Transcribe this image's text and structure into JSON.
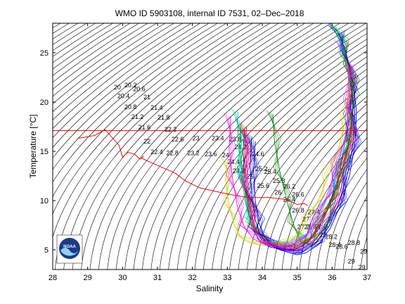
{
  "chart_data": {
    "type": "scatter",
    "title": "WMO ID 5903108, internal ID 7531, 02–Dec–2018",
    "xlabel": "Salinity",
    "ylabel": "Temperature [°C]",
    "xlim": [
      28,
      37
    ],
    "ylim": [
      3,
      28
    ],
    "xticks": [
      "28",
      "29",
      "30",
      "31",
      "32",
      "33",
      "34",
      "35",
      "36",
      "37"
    ],
    "yticks": [
      "5",
      "10",
      "15",
      "20",
      "25"
    ],
    "grid": false,
    "legend": "none",
    "density_contour_labels": [
      {
        "label": "20",
        "s": 29.75,
        "t": 21.3
      },
      {
        "label": "20.2",
        "s": 30.05,
        "t": 21.5
      },
      {
        "label": "20.4",
        "s": 29.85,
        "t": 20.4
      },
      {
        "label": "20.6",
        "s": 30.3,
        "t": 21.1
      },
      {
        "label": "20.8",
        "s": 30.05,
        "t": 19.3
      },
      {
        "label": "21",
        "s": 30.6,
        "t": 20.3
      },
      {
        "label": "21.2",
        "s": 30.25,
        "t": 18.3
      },
      {
        "label": "21.4",
        "s": 30.8,
        "t": 19.2
      },
      {
        "label": "21.6",
        "s": 30.45,
        "t": 17.2
      },
      {
        "label": "21.8",
        "s": 31.0,
        "t": 18.2
      },
      {
        "label": "22",
        "s": 30.6,
        "t": 15.8
      },
      {
        "label": "22.2",
        "s": 31.2,
        "t": 17.0
      },
      {
        "label": "22.4",
        "s": 30.8,
        "t": 14.7
      },
      {
        "label": "22.6",
        "s": 31.4,
        "t": 16.0
      },
      {
        "label": "22.8",
        "s": 31.25,
        "t": 14.6
      },
      {
        "label": "23",
        "s": 32.0,
        "t": 16.1
      },
      {
        "label": "23.2",
        "s": 31.85,
        "t": 14.6
      },
      {
        "label": "23.4",
        "s": 32.55,
        "t": 16.1
      },
      {
        "label": "23.6",
        "s": 32.35,
        "t": 14.5
      },
      {
        "label": "23.8",
        "s": 33.05,
        "t": 16.0
      },
      {
        "label": "24",
        "s": 32.85,
        "t": 14.4
      },
      {
        "label": "24.2",
        "s": 33.2,
        "t": 15.2
      },
      {
        "label": "24.4",
        "s": 33.0,
        "t": 13.7
      },
      {
        "label": "24.6",
        "s": 33.7,
        "t": 14.5
      },
      {
        "label": "24.8",
        "s": 33.15,
        "t": 12.8
      },
      {
        "label": "25",
        "s": 33.55,
        "t": 12.2
      },
      {
        "label": "25.2",
        "s": 33.8,
        "t": 13.0
      },
      {
        "label": "25.4",
        "s": 34.05,
        "t": 12.7
      },
      {
        "label": "25.6",
        "s": 33.85,
        "t": 11.3
      },
      {
        "label": "25.8",
        "s": 34.3,
        "t": 11.8
      },
      {
        "label": "26",
        "s": 34.35,
        "t": 10.6
      },
      {
        "label": "26.2",
        "s": 34.6,
        "t": 11.2
      },
      {
        "label": "26.4",
        "s": 34.6,
        "t": 9.9
      },
      {
        "label": "26.6",
        "s": 34.85,
        "t": 10.4
      },
      {
        "label": "26.8",
        "s": 34.85,
        "t": 8.8
      },
      {
        "label": "27",
        "s": 35.15,
        "t": 7.9
      },
      {
        "label": "27.2",
        "s": 35.0,
        "t": 7.1
      },
      {
        "label": "27.4",
        "s": 35.3,
        "t": 8.6
      },
      {
        "label": "27.6",
        "s": 35.2,
        "t": 7.1
      },
      {
        "label": "27.8",
        "s": 35.5,
        "t": 7.1
      },
      {
        "label": "28",
        "s": 35.65,
        "t": 6.3
      },
      {
        "label": "28.2",
        "s": 35.8,
        "t": 6.1
      },
      {
        "label": "28.4",
        "s": 35.9,
        "t": 5.3
      },
      {
        "label": "28.6",
        "s": 36.1,
        "t": 5.1
      },
      {
        "label": "28.8",
        "s": 36.45,
        "t": 5.5
      },
      {
        "label": "29",
        "s": 36.8,
        "t": 4.6
      },
      {
        "label": "29",
        "s": 36.45,
        "t": 3.6
      },
      {
        "label": "29",
        "s": 36.75,
        "t": 3.0
      }
    ],
    "reference_line": {
      "color": "#ff0000",
      "t": 17.1,
      "s_range": [
        28,
        37
      ]
    },
    "red_profile": {
      "color": "#ff0000",
      "s": [
        28.7,
        29.2,
        29.5,
        29.9,
        30.0,
        30.15,
        30.35,
        30.5,
        30.6,
        30.55,
        30.85,
        31.5,
        31.8,
        32.2,
        32.7,
        33.1,
        33.6,
        34.2,
        34.7,
        35.0,
        35.2,
        35.3
      ],
      "t": [
        16.3,
        16.6,
        17.2,
        15.6,
        14.4,
        14.9,
        14.7,
        14.2,
        14.5,
        14.3,
        13.8,
        12.8,
        12.0,
        11.3,
        10.9,
        10.6,
        10.3,
        10.3,
        10.1,
        9.6,
        9.7,
        9.5
      ]
    },
    "profiles": [
      {
        "color": "#0000ff",
        "s": [
          33.5,
          33.45,
          33.5,
          33.6,
          33.75,
          33.9,
          34.2,
          34.6,
          34.9,
          35.2,
          35.6,
          35.9,
          36.2,
          36.35,
          36.5,
          36.55,
          36.5,
          36.3,
          36.05
        ],
        "t": [
          17.2,
          15.0,
          12.0,
          9.0,
          7.0,
          6.0,
          5.3,
          5.0,
          5.0,
          5.5,
          7.0,
          9.5,
          12.5,
          15.5,
          18.5,
          21.0,
          23.5,
          25.5,
          27.5
        ]
      },
      {
        "color": "#00aa00",
        "s": [
          33.4,
          33.35,
          33.45,
          33.55,
          33.7,
          33.95,
          34.3,
          34.7,
          35.0,
          35.4,
          35.75,
          36.05,
          36.3,
          36.5,
          36.6,
          36.55,
          36.4,
          36.2
        ],
        "t": [
          18.0,
          15.5,
          12.5,
          9.5,
          7.5,
          6.3,
          5.6,
          5.3,
          5.4,
          6.2,
          8.0,
          10.5,
          13.5,
          16.5,
          19.5,
          22.0,
          24.5,
          26.5
        ]
      },
      {
        "color": "#ff00ff",
        "s": [
          33.6,
          33.55,
          33.6,
          33.7,
          33.85,
          34.05,
          34.4,
          34.8,
          35.1,
          35.45,
          35.85,
          36.15,
          36.4,
          36.55,
          36.6,
          36.45,
          36.25
        ],
        "t": [
          16.8,
          14.0,
          11.0,
          8.5,
          6.8,
          5.8,
          5.2,
          4.9,
          5.0,
          5.8,
          7.5,
          10.0,
          13.0,
          16.0,
          19.5,
          23.0,
          26.0
        ]
      },
      {
        "color": "#00bfbf",
        "s": [
          33.3,
          33.3,
          33.4,
          33.5,
          33.65,
          33.85,
          34.15,
          34.55,
          34.85,
          35.25,
          35.65,
          35.95,
          36.25,
          36.45,
          36.55,
          36.5,
          36.35,
          36.15,
          36.0
        ],
        "t": [
          19.0,
          16.0,
          13.0,
          10.0,
          8.0,
          6.6,
          5.8,
          5.4,
          5.5,
          6.5,
          8.5,
          11.0,
          14.0,
          17.0,
          20.0,
          22.5,
          24.8,
          26.8,
          27.8
        ]
      },
      {
        "color": "#000088",
        "s": [
          33.7,
          33.65,
          33.7,
          33.8,
          33.95,
          34.15,
          34.5,
          34.9,
          35.15,
          35.5,
          35.9,
          36.2,
          36.45,
          36.6,
          36.65,
          36.5
        ],
        "t": [
          16.5,
          13.5,
          10.5,
          8.0,
          6.5,
          5.6,
          5.0,
          4.6,
          4.8,
          5.6,
          7.3,
          9.8,
          12.8,
          15.8,
          19.0,
          22.5
        ]
      },
      {
        "color": "#cccc00",
        "s": [
          33.0,
          32.95,
          33.05,
          33.2,
          33.4,
          33.6,
          33.9,
          34.3,
          34.7,
          35.0,
          35.3,
          35.6,
          35.9,
          36.2,
          36.4,
          36.5,
          36.45,
          36.3
        ],
        "t": [
          14.0,
          12.0,
          9.5,
          7.5,
          6.2,
          5.8,
          5.5,
          5.4,
          5.6,
          6.4,
          8.0,
          10.0,
          12.5,
          15.5,
          18.5,
          21.5,
          24.0,
          26.0
        ]
      },
      {
        "color": "#ff0000",
        "s": [
          33.55,
          33.5,
          33.55,
          33.65,
          33.8,
          34.0,
          34.35,
          34.75,
          35.05,
          35.35,
          35.7,
          36.0,
          36.3,
          36.5,
          36.6,
          36.55,
          36.4
        ],
        "t": [
          17.5,
          14.5,
          11.5,
          8.8,
          7.0,
          6.0,
          5.4,
          5.1,
          5.2,
          6.0,
          7.8,
          10.2,
          13.2,
          16.2,
          19.2,
          22.2,
          25.0
        ]
      },
      {
        "color": "#008000",
        "s": [
          34.3,
          34.35,
          34.5,
          34.7,
          34.9,
          35.1,
          35.4,
          35.8,
          36.1,
          36.35,
          36.55,
          36.6,
          36.5,
          36.3,
          36.1
        ],
        "t": [
          18.8,
          16.0,
          13.0,
          10.0,
          7.5,
          5.8,
          5.5,
          7.2,
          10.0,
          13.5,
          17.0,
          20.5,
          23.5,
          26.0,
          27.5
        ]
      },
      {
        "color": "#0000ff",
        "s": [
          33.8,
          33.75,
          33.8,
          33.9,
          34.05,
          34.25,
          34.6,
          35.0,
          35.25,
          35.6,
          35.95,
          36.25,
          36.5,
          36.65,
          36.7,
          36.6,
          36.4,
          36.2
        ],
        "t": [
          16.0,
          13.0,
          10.0,
          7.8,
          6.4,
          5.5,
          4.9,
          4.5,
          4.7,
          5.5,
          7.2,
          9.6,
          12.6,
          15.6,
          19.0,
          22.0,
          25.0,
          27.0
        ]
      },
      {
        "color": "#ff00ff",
        "s": [
          33.1,
          33.05,
          33.15,
          33.3,
          33.5,
          33.75,
          34.1,
          34.5,
          34.8,
          35.2,
          35.55,
          35.85,
          36.15,
          36.4,
          36.5,
          36.45
        ],
        "t": [
          18.5,
          15.2,
          12.2,
          9.2,
          7.2,
          6.1,
          5.5,
          5.2,
          5.3,
          6.2,
          8.0,
          10.5,
          13.6,
          16.8,
          20.0,
          23.5
        ]
      }
    ]
  },
  "logo": {
    "text": "NOAA"
  }
}
